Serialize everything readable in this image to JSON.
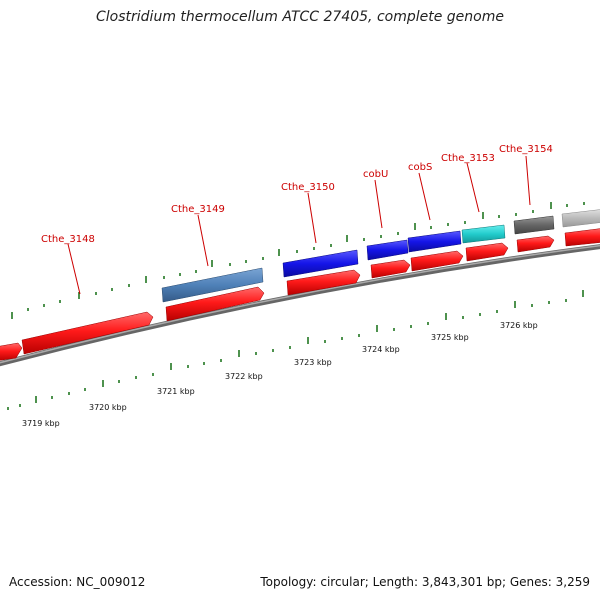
{
  "title": "Clostridium thermocellum ATCC 27405, complete genome",
  "footer": {
    "accession": "Accession: NC_009012",
    "summary": "Topology: circular; Length: 3,843,301 bp; Genes: 3,259"
  },
  "gene_labels": [
    "Cthe_3148",
    "Cthe_3149",
    "Cthe_3150",
    "cobU",
    "cobS",
    "Cthe_3153",
    "Cthe_3154"
  ],
  "kbp_labels": [
    "3719 kbp",
    "3720 kbp",
    "3721 kbp",
    "3722 kbp",
    "3723 kbp",
    "3724 kbp",
    "3725 kbp",
    "3726 kbp"
  ],
  "colors": {
    "cds": "#ee1111",
    "gene_steelblue": "#4f81b8",
    "gene_blue": "#1a1ae0",
    "gene_cyan": "#22cccc",
    "gene_gray": "#666666",
    "gene_lightgray": "#bbbbbb",
    "backbone": "#888888",
    "ticks": "#227722",
    "label": "#cc0000"
  }
}
